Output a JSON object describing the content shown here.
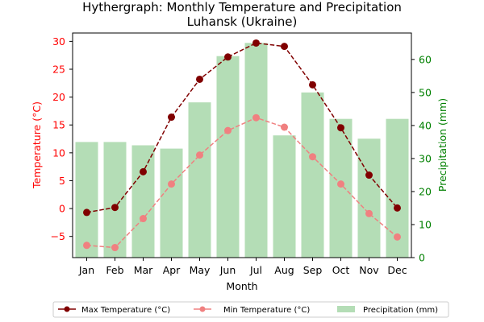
{
  "colors": {
    "max": "#800000",
    "min": "#f08080",
    "precip": "#4caf50",
    "left_axis": "#ff0000",
    "right_axis": "#008000"
  },
  "chart_data": {
    "type": "line",
    "title_line1": "Hythergraph: Monthly Temperature and Precipitation",
    "title_line2": "Luhansk (Ukraine)",
    "xlabel": "Month",
    "ylabel_left": "Temperature (°C)",
    "ylabel_right": "Precipitation (mm)",
    "categories": [
      "Jan",
      "Feb",
      "Mar",
      "Apr",
      "May",
      "Jun",
      "Jul",
      "Aug",
      "Sep",
      "Oct",
      "Nov",
      "Dec"
    ],
    "ylim_left": [
      -8.8,
      31.5
    ],
    "ylim_right": [
      0,
      68
    ],
    "yticks_left": [
      "-5",
      "0",
      "5",
      "10",
      "15",
      "20",
      "25",
      "30"
    ],
    "yticks_right": [
      "0",
      "10",
      "20",
      "30",
      "40",
      "50",
      "60"
    ],
    "series": [
      {
        "name": "Precipitation (mm)",
        "kind": "bar",
        "axis": "right",
        "values": [
          35,
          35,
          34,
          33,
          47,
          61,
          65,
          37,
          50,
          42,
          36,
          42
        ]
      },
      {
        "name": "Max Temperature (°C)",
        "kind": "line",
        "axis": "left",
        "style": "dashed",
        "values": [
          -0.7,
          0.2,
          6.6,
          16.4,
          23.2,
          27.2,
          29.7,
          29.1,
          22.2,
          14.5,
          6.0,
          0.1
        ]
      },
      {
        "name": "Min Temperature (°C)",
        "kind": "line",
        "axis": "left",
        "style": "dashed",
        "values": [
          -6.6,
          -7.0,
          -1.8,
          4.4,
          9.6,
          14.0,
          16.3,
          14.6,
          9.3,
          4.4,
          -0.9,
          -5.1
        ]
      }
    ],
    "legend": {
      "placement": "bottom",
      "ncol": 3,
      "entries": [
        "Max Temperature (°C)",
        "Min Temperature (°C)",
        "Precipitation (mm)"
      ]
    }
  }
}
